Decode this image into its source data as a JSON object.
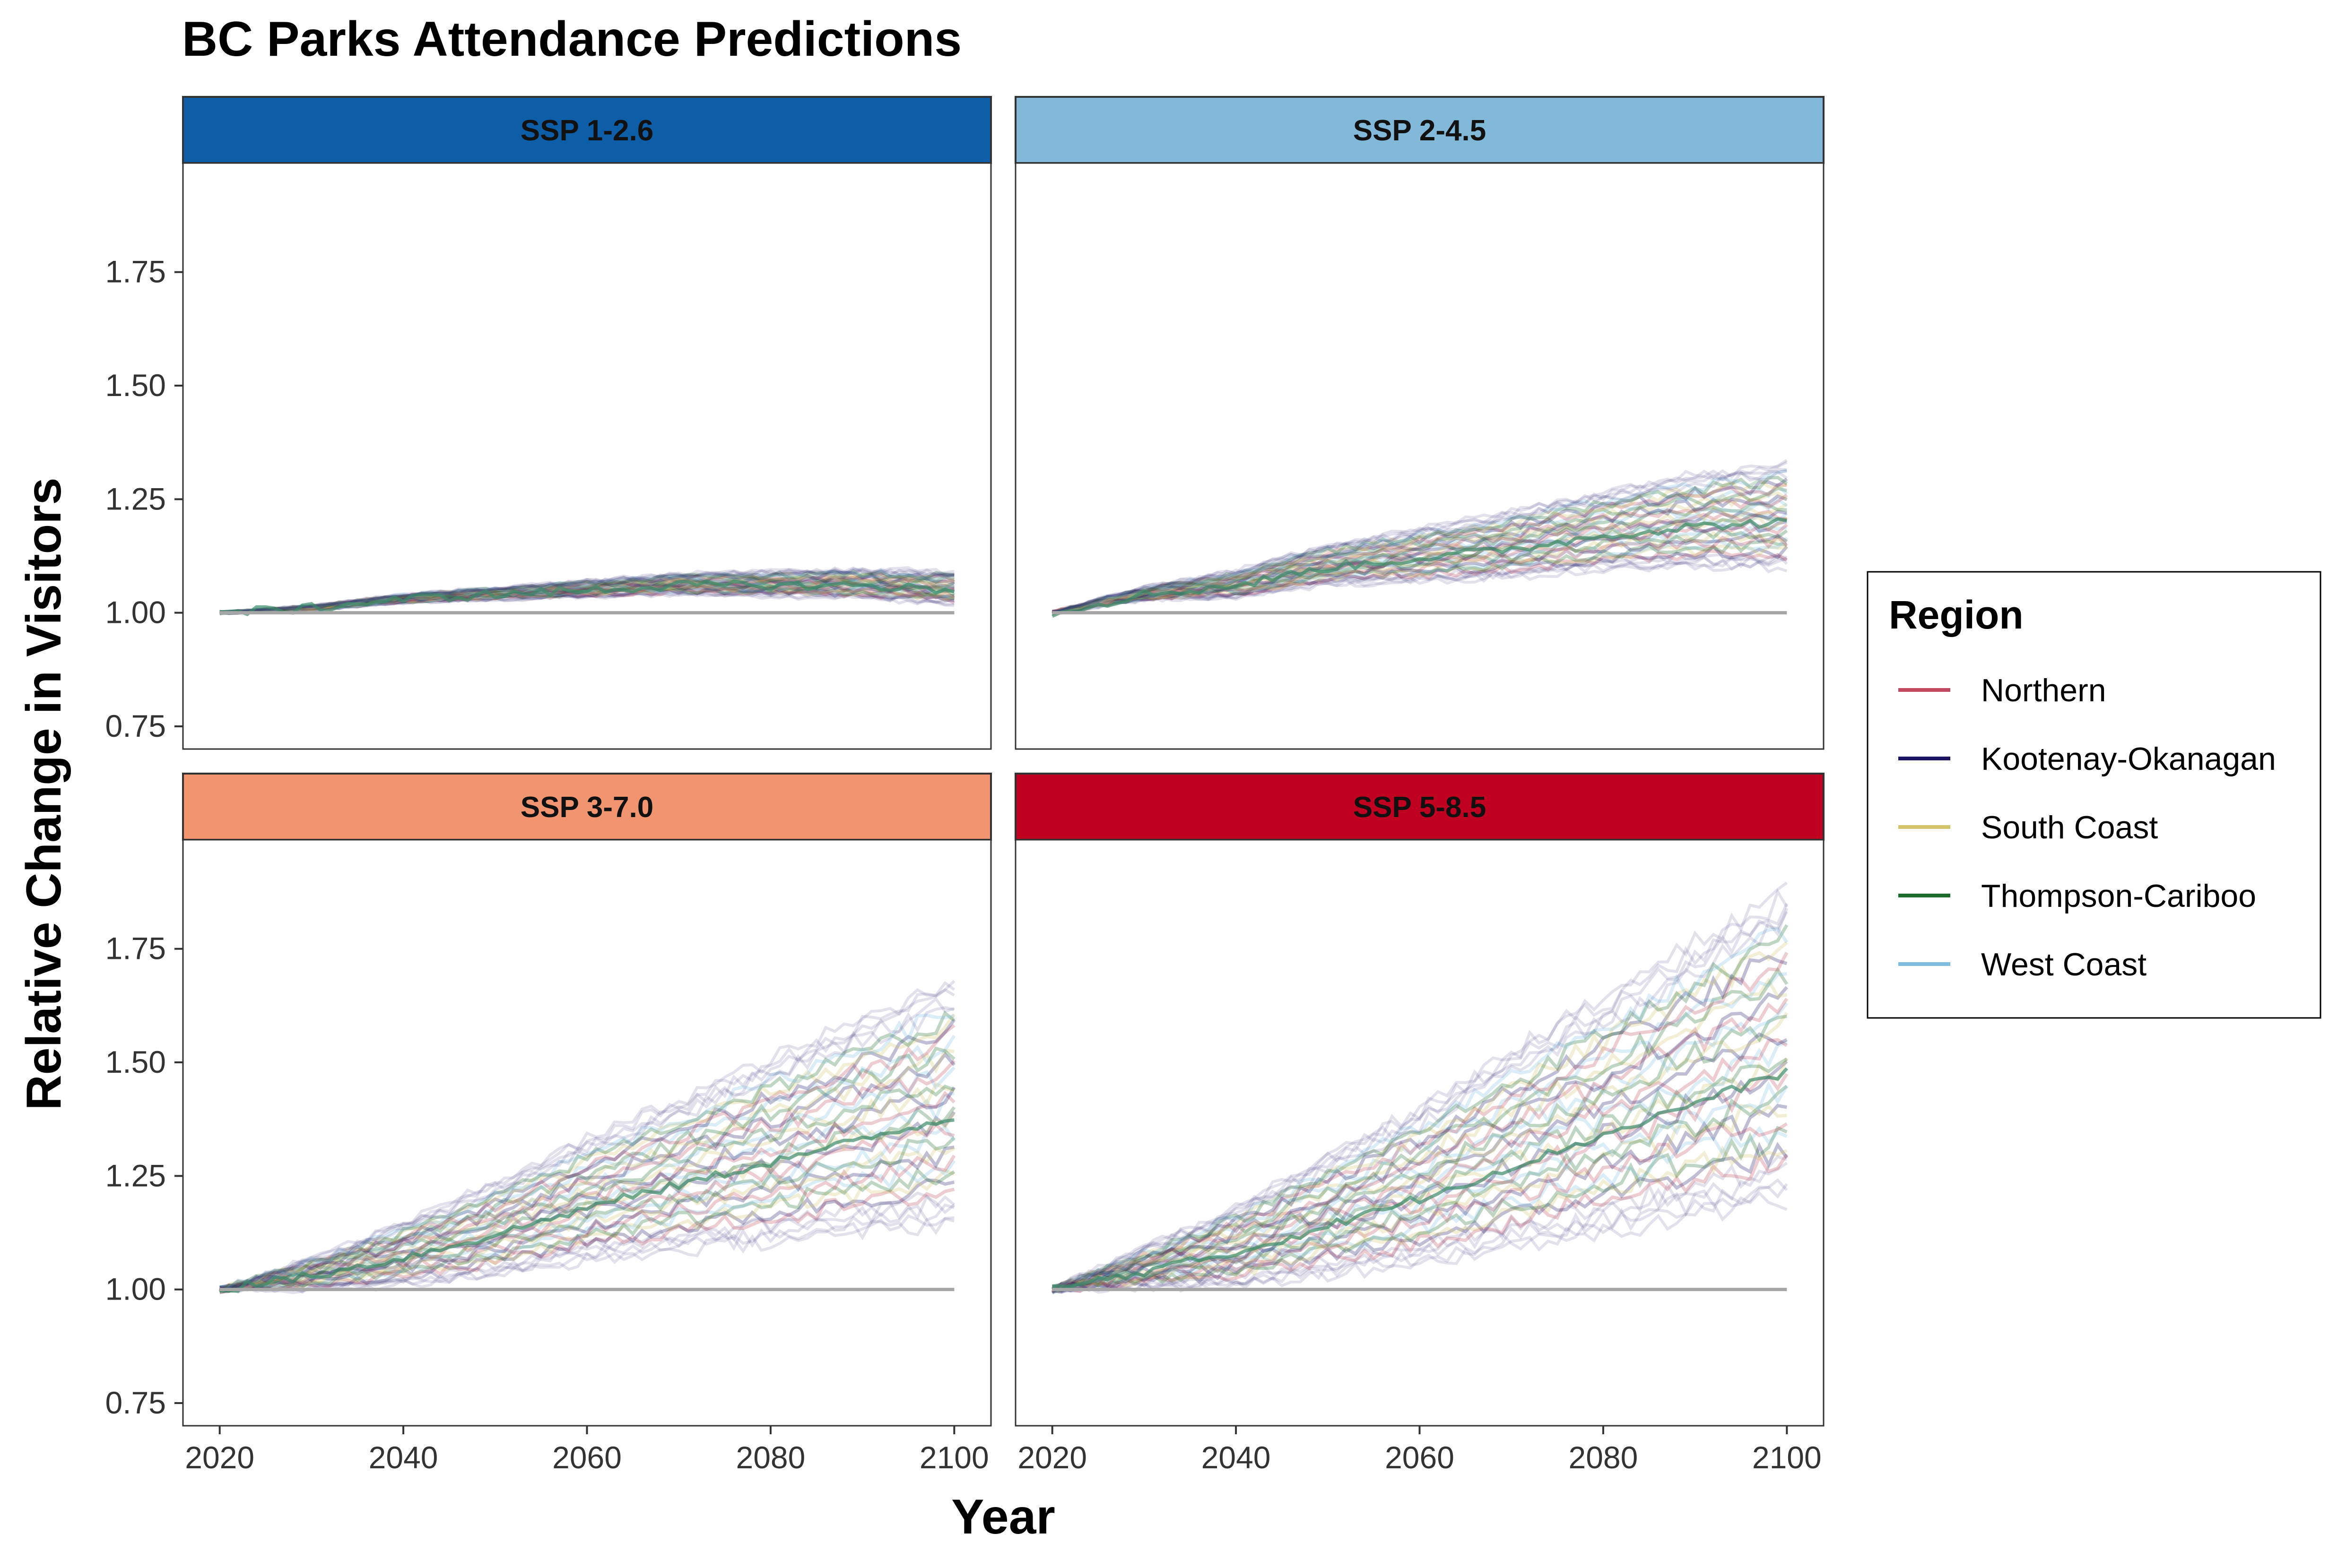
{
  "chart_data": {
    "type": "line",
    "title": "BC Parks Attendance Predictions",
    "xlabel": "Year",
    "ylabel": "Relative Change in Visitors",
    "xlim": [
      2016,
      2104
    ],
    "ylim": [
      0.7,
      1.99
    ],
    "x_ticks": [
      "2020",
      "2040",
      "2060",
      "2080",
      "2100"
    ],
    "y_ticks": [
      "0.75",
      "1.00",
      "1.25",
      "1.50",
      "1.75"
    ],
    "baseline": 1.0,
    "grid": false,
    "legend": {
      "title": "Region",
      "placement": "right",
      "entries": [
        {
          "name": "Northern",
          "color": "#c0485f"
        },
        {
          "name": "Kootenay-Okanagan",
          "color": "#1b1464"
        },
        {
          "name": "South Coast",
          "color": "#d4c56a"
        },
        {
          "name": "Thompson-Cariboo",
          "color": "#1e6b2e"
        },
        {
          "name": "West Coast",
          "color": "#7fbde0"
        }
      ]
    },
    "panels": [
      {
        "label": "SSP 1-2.6",
        "strip_color": "#0d5ea6",
        "x": [
          2020,
          2030,
          2040,
          2050,
          2060,
          2070,
          2080,
          2090,
          2100
        ],
        "series_center": [
          1.0,
          1.01,
          1.03,
          1.04,
          1.05,
          1.06,
          1.06,
          1.06,
          1.05
        ],
        "spread_at_2100": [
          1.02,
          1.09
        ]
      },
      {
        "label": "SSP 2-4.5",
        "strip_color": "#82b9d8",
        "x": [
          2020,
          2030,
          2040,
          2050,
          2060,
          2070,
          2080,
          2090,
          2100
        ],
        "series_center": [
          1.0,
          1.04,
          1.06,
          1.1,
          1.12,
          1.14,
          1.17,
          1.19,
          1.2
        ],
        "spread_at_2100": [
          1.1,
          1.33
        ]
      },
      {
        "label": "SSP 3-7.0",
        "strip_color": "#f0956f",
        "x": [
          2020,
          2030,
          2040,
          2050,
          2060,
          2070,
          2080,
          2090,
          2100
        ],
        "series_center": [
          1.0,
          1.03,
          1.07,
          1.12,
          1.18,
          1.23,
          1.28,
          1.33,
          1.38
        ],
        "spread_at_2100": [
          1.15,
          1.68
        ]
      },
      {
        "label": "SSP 5-8.5",
        "strip_color": "#bf0020",
        "x": [
          2020,
          2030,
          2040,
          2050,
          2060,
          2070,
          2080,
          2090,
          2100
        ],
        "series_center": [
          1.0,
          1.04,
          1.08,
          1.14,
          1.2,
          1.27,
          1.34,
          1.41,
          1.48
        ],
        "spread_at_2100": [
          1.2,
          1.88
        ]
      }
    ]
  }
}
